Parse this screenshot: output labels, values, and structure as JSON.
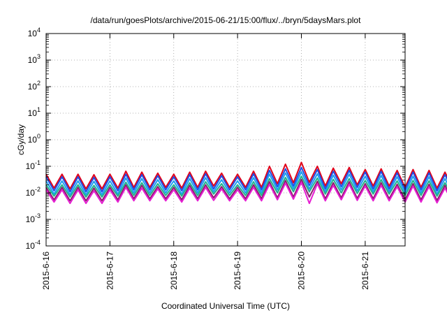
{
  "chart_data": {
    "type": "line",
    "title": "/data/run/goesPlots/archive/2015-06-21/15:00/flux/../bryn/5daysMars.plot",
    "xlabel": "Coordinated Universal Time (UTC)",
    "ylabel": "cGy/day",
    "yscale": "log",
    "ylim": [
      0.0001,
      10000
    ],
    "yticks": [
      {
        "value": 0.0001,
        "base": "10",
        "exp": "-4"
      },
      {
        "value": 0.001,
        "base": "10",
        "exp": "-3"
      },
      {
        "value": 0.01,
        "base": "10",
        "exp": "-2"
      },
      {
        "value": 0.1,
        "base": "10",
        "exp": "-1"
      },
      {
        "value": 1,
        "base": "10",
        "exp": "0"
      },
      {
        "value": 10,
        "base": "10",
        "exp": "1"
      },
      {
        "value": 100,
        "base": "10",
        "exp": "2"
      },
      {
        "value": 1000,
        "base": "10",
        "exp": "3"
      },
      {
        "value": 10000,
        "base": "10",
        "exp": "4"
      }
    ],
    "xlim": [
      "2015-06-16 00:00",
      "2015-06-21 15:00"
    ],
    "xticks": [
      {
        "date": "2015-06-16",
        "label": "2015-6-16"
      },
      {
        "date": "2015-06-17",
        "label": "2015-6-17"
      },
      {
        "date": "2015-06-18",
        "label": "2015-6-18"
      },
      {
        "date": "2015-06-19",
        "label": "2015-6-19"
      },
      {
        "date": "2015-06-20",
        "label": "2015-6-20"
      },
      {
        "date": "2015-06-21",
        "label": "2015-6-21"
      }
    ],
    "grid": true,
    "legend": "none",
    "series": [
      {
        "color": "#e0001a",
        "x_start": "2015-06-16 00:00",
        "step_hours": 3,
        "values": [
          0.05,
          0.015,
          0.05,
          0.014,
          0.05,
          0.014,
          0.048,
          0.014,
          0.05,
          0.015,
          0.065,
          0.016,
          0.06,
          0.016,
          0.055,
          0.016,
          0.05,
          0.015,
          0.06,
          0.016,
          0.065,
          0.018,
          0.055,
          0.016,
          0.05,
          0.016,
          0.065,
          0.016,
          0.1,
          0.022,
          0.12,
          0.024,
          0.14,
          0.025,
          0.1,
          0.018,
          0.085,
          0.022,
          0.09,
          0.02,
          0.075,
          0.018,
          0.08,
          0.018,
          0.07,
          0.016,
          0.075,
          0.016,
          0.07,
          0.015,
          0.06,
          0.015,
          0.065,
          0.016,
          0.065,
          0.015,
          0.06,
          0.016,
          0.075,
          0.016,
          0.08,
          0.018,
          0.065,
          0.016,
          0.05,
          0.015,
          0.05,
          0.015,
          0.065,
          0.016,
          0.08,
          0.017,
          0.085,
          0.018,
          0.06,
          0.015,
          0.05,
          0.015,
          0.05,
          0.015,
          0.06,
          0.016,
          0.05,
          0.015,
          0.05
        ]
      },
      {
        "color": "#1e50e6",
        "x_start": "2015-06-16 00:00",
        "step_hours": 3,
        "values": [
          0.04,
          0.012,
          0.04,
          0.011,
          0.04,
          0.011,
          0.038,
          0.011,
          0.04,
          0.012,
          0.05,
          0.013,
          0.048,
          0.013,
          0.044,
          0.013,
          0.04,
          0.012,
          0.048,
          0.013,
          0.052,
          0.014,
          0.044,
          0.013,
          0.04,
          0.013,
          0.052,
          0.013,
          0.07,
          0.017,
          0.08,
          0.018,
          0.09,
          0.019,
          0.075,
          0.014,
          0.065,
          0.017,
          0.07,
          0.016,
          0.06,
          0.014,
          0.064,
          0.014,
          0.056,
          0.013,
          0.06,
          0.013,
          0.056,
          0.012,
          0.048,
          0.012,
          0.052,
          0.013,
          0.052,
          0.012,
          0.048,
          0.013,
          0.06,
          0.013,
          0.064,
          0.014,
          0.052,
          0.013,
          0.04,
          0.012,
          0.04,
          0.012,
          0.052,
          0.013,
          0.064,
          0.014,
          0.068,
          0.014,
          0.048,
          0.012,
          0.04,
          0.012,
          0.04,
          0.012,
          0.048,
          0.013,
          0.04,
          0.012,
          0.04
        ]
      },
      {
        "color": "#1aa0f0",
        "x_start": "2015-06-16 00:00",
        "step_hours": 3,
        "values": [
          0.028,
          0.009,
          0.028,
          0.0085,
          0.028,
          0.0085,
          0.027,
          0.0085,
          0.028,
          0.009,
          0.036,
          0.01,
          0.034,
          0.01,
          0.031,
          0.01,
          0.028,
          0.009,
          0.034,
          0.01,
          0.037,
          0.011,
          0.031,
          0.01,
          0.028,
          0.01,
          0.037,
          0.01,
          0.05,
          0.013,
          0.056,
          0.014,
          0.062,
          0.014,
          0.052,
          0.011,
          0.046,
          0.013,
          0.05,
          0.012,
          0.042,
          0.011,
          0.045,
          0.011,
          0.04,
          0.01,
          0.042,
          0.01,
          0.04,
          0.009,
          0.034,
          0.009,
          0.037,
          0.01,
          0.037,
          0.009,
          0.034,
          0.01,
          0.042,
          0.01,
          0.045,
          0.011,
          0.037,
          0.01,
          0.028,
          0.009,
          0.028,
          0.009,
          0.037,
          0.01,
          0.045,
          0.011,
          0.048,
          0.011,
          0.034,
          0.009,
          0.028,
          0.009,
          0.028,
          0.009,
          0.034,
          0.01,
          0.028,
          0.009,
          0.028
        ]
      },
      {
        "color": "#20b48c",
        "x_start": "2015-06-16 00:00",
        "step_hours": 3,
        "values": [
          0.02,
          0.0075,
          0.02,
          0.007,
          0.02,
          0.007,
          0.019,
          0.007,
          0.02,
          0.0075,
          0.025,
          0.008,
          0.024,
          0.008,
          0.022,
          0.008,
          0.02,
          0.0075,
          0.024,
          0.008,
          0.026,
          0.009,
          0.022,
          0.008,
          0.02,
          0.008,
          0.026,
          0.008,
          0.034,
          0.01,
          0.038,
          0.011,
          0.042,
          0.011,
          0.036,
          0.009,
          0.032,
          0.01,
          0.034,
          0.0095,
          0.029,
          0.009,
          0.031,
          0.009,
          0.028,
          0.008,
          0.029,
          0.008,
          0.028,
          0.0075,
          0.024,
          0.0075,
          0.026,
          0.008,
          0.026,
          0.0075,
          0.024,
          0.008,
          0.029,
          0.008,
          0.031,
          0.009,
          0.026,
          0.008,
          0.02,
          0.0075,
          0.02,
          0.0075,
          0.026,
          0.008,
          0.031,
          0.009,
          0.033,
          0.009,
          0.024,
          0.0075,
          0.02,
          0.0075,
          0.02,
          0.0075,
          0.024,
          0.008,
          0.02,
          0.0075,
          0.02
        ]
      },
      {
        "color": "#8c1e6e",
        "x_start": "2015-06-16 00:00",
        "step_hours": 3,
        "values": [
          0.016,
          0.0055,
          0.016,
          0.005,
          0.016,
          0.005,
          0.015,
          0.005,
          0.016,
          0.0055,
          0.02,
          0.006,
          0.019,
          0.006,
          0.017,
          0.006,
          0.016,
          0.0055,
          0.019,
          0.006,
          0.02,
          0.0065,
          0.017,
          0.006,
          0.016,
          0.006,
          0.02,
          0.006,
          0.026,
          0.0065,
          0.029,
          0.007,
          0.032,
          0.007,
          0.027,
          0.006,
          0.024,
          0.0065,
          0.026,
          0.0062,
          0.022,
          0.006,
          0.024,
          0.006,
          0.021,
          0.0055,
          0.022,
          0.0055,
          0.021,
          0.0052,
          0.019,
          0.0052,
          0.02,
          0.0055,
          0.02,
          0.0052,
          0.019,
          0.0055,
          0.022,
          0.0055,
          0.024,
          0.006,
          0.02,
          0.0055,
          0.016,
          0.0052,
          0.016,
          0.0052,
          0.02,
          0.0055,
          0.024,
          0.006,
          0.025,
          0.006,
          0.019,
          0.0052,
          0.016,
          0.0052,
          0.016,
          0.0052,
          0.019,
          0.0055,
          0.016,
          0.0052,
          0.016
        ]
      },
      {
        "color": "#e61ed2",
        "x_start": "2015-06-16 00:00",
        "step_hours": 3,
        "values": [
          0.013,
          0.0045,
          0.013,
          0.004,
          0.013,
          0.004,
          0.012,
          0.004,
          0.013,
          0.0045,
          0.016,
          0.005,
          0.015,
          0.005,
          0.014,
          0.005,
          0.013,
          0.0045,
          0.015,
          0.005,
          0.016,
          0.0052,
          0.014,
          0.005,
          0.013,
          0.005,
          0.016,
          0.005,
          0.021,
          0.0055,
          0.023,
          0.0058,
          0.025,
          0.004,
          0.022,
          0.005,
          0.019,
          0.0055,
          0.021,
          0.0052,
          0.018,
          0.005,
          0.019,
          0.005,
          0.017,
          0.0045,
          0.018,
          0.0045,
          0.017,
          0.0042,
          0.015,
          0.0042,
          0.016,
          0.0045,
          0.016,
          0.0042,
          0.015,
          0.0045,
          0.018,
          0.0045,
          0.019,
          0.005,
          0.016,
          0.0045,
          0.013,
          0.0042,
          0.013,
          0.0042,
          0.016,
          0.0045,
          0.019,
          0.005,
          0.02,
          0.005,
          0.015,
          0.0042,
          0.013,
          0.0042,
          0.013,
          0.0042,
          0.015,
          0.0045,
          0.013,
          0.0042,
          0.013
        ]
      }
    ]
  }
}
